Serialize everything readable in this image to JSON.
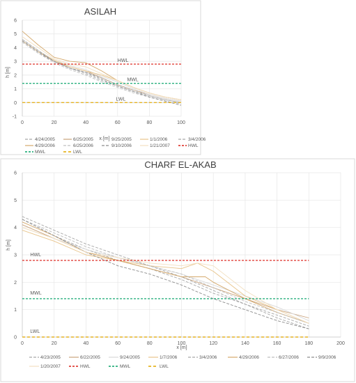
{
  "chart_data": [
    {
      "type": "line",
      "title": "ASILAH",
      "xlabel": "x [m]",
      "ylabel": "h [m]",
      "xlim": [
        0,
        100
      ],
      "ylim": [
        -1,
        6
      ],
      "xticks": [
        "0",
        "20",
        "40",
        "60",
        "80",
        "100"
      ],
      "yticks": [
        "-1",
        "0",
        "1",
        "2",
        "3",
        "4",
        "5",
        "6"
      ],
      "legend_position": "bottom",
      "annotations": [
        {
          "text": "HWL",
          "x": 60,
          "y": 2.95
        },
        {
          "text": "MWL",
          "x": 66,
          "y": 1.55
        },
        {
          "text": "LWL",
          "x": 59,
          "y": 0.15
        }
      ],
      "series": [
        {
          "name": "4/24/2005",
          "color": "#a6a6a6",
          "dash": "dash",
          "x": [
            0,
            10,
            20,
            30,
            40,
            50,
            60,
            70,
            80,
            90,
            100
          ],
          "y": [
            4.4,
            3.6,
            3.0,
            2.5,
            2.1,
            1.6,
            1.2,
            0.8,
            0.5,
            0.2,
            0.0
          ]
        },
        {
          "name": "6/25/2005",
          "color": "#c9a27a",
          "dash": "solid",
          "x": [
            0,
            10,
            20,
            30,
            40,
            50,
            60,
            70,
            80,
            90,
            100
          ],
          "y": [
            4.5,
            3.7,
            3.0,
            2.6,
            2.3,
            1.8,
            1.3,
            0.9,
            0.6,
            0.3,
            0.1
          ]
        },
        {
          "name": "9/25/2005",
          "color": "#d9d9d9",
          "dash": "solid",
          "x": [
            0,
            10,
            20,
            30,
            40,
            50,
            60,
            70,
            80,
            90,
            100
          ],
          "y": [
            4.6,
            3.8,
            3.1,
            2.7,
            2.4,
            1.9,
            1.5,
            1.0,
            0.6,
            0.3,
            0.1
          ]
        },
        {
          "name": "1/1/2006",
          "color": "#e8c48a",
          "dash": "solid",
          "x": [
            0,
            10,
            20,
            30,
            40,
            50,
            60,
            70,
            80,
            90,
            100
          ],
          "y": [
            4.5,
            3.7,
            3.1,
            2.6,
            2.3,
            2.0,
            1.6,
            1.1,
            0.7,
            0.4,
            0.2
          ]
        },
        {
          "name": "3/4/2006",
          "color": "#a6a6a6",
          "dash": "dash",
          "x": [
            0,
            10,
            20,
            30,
            40,
            50,
            60,
            70,
            80,
            90,
            100
          ],
          "y": [
            4.6,
            3.8,
            3.0,
            2.5,
            2.2,
            1.8,
            1.3,
            0.9,
            0.5,
            0.2,
            0.0
          ]
        },
        {
          "name": "4/29/2006",
          "color": "#d4a86a",
          "dash": "solid",
          "x": [
            0,
            10,
            20,
            30,
            40,
            50,
            60,
            70,
            80,
            90,
            100
          ],
          "y": [
            5.2,
            4.2,
            3.3,
            3.0,
            2.9,
            2.3,
            1.6,
            1.1,
            0.7,
            0.4,
            0.2
          ]
        },
        {
          "name": "6/25/2006",
          "color": "#bfbfbf",
          "dash": "dash",
          "x": [
            0,
            10,
            20,
            30,
            40,
            50,
            60,
            70,
            80,
            90,
            100
          ],
          "y": [
            4.4,
            3.6,
            2.9,
            2.4,
            2.0,
            1.5,
            1.1,
            0.7,
            0.4,
            0.1,
            -0.1
          ]
        },
        {
          "name": "9/10/2006",
          "color": "#8c8c8c",
          "dash": "dash",
          "x": [
            0,
            10,
            20,
            30,
            40,
            50,
            60,
            70,
            80,
            90,
            100
          ],
          "y": [
            4.5,
            3.7,
            3.0,
            2.5,
            2.2,
            1.7,
            1.2,
            0.8,
            0.4,
            0.1,
            -0.2
          ]
        },
        {
          "name": "1/21/2007",
          "color": "#f2dfc0",
          "dash": "solid",
          "x": [
            0,
            10,
            20,
            30,
            40,
            50,
            60,
            70,
            80,
            90,
            100
          ],
          "y": [
            4.8,
            4.0,
            3.2,
            2.8,
            2.6,
            2.1,
            1.6,
            1.1,
            0.7,
            0.4,
            0.2
          ]
        },
        {
          "name": "HWL",
          "color": "#e0423a",
          "dash": "hwl",
          "x": [
            0,
            100
          ],
          "y": [
            2.8,
            2.8
          ]
        },
        {
          "name": "MWL",
          "color": "#2bb07f",
          "dash": "hwl",
          "x": [
            0,
            100
          ],
          "y": [
            1.4,
            1.4
          ]
        },
        {
          "name": "LWL",
          "color": "#e6b422",
          "dash": "lwl",
          "x": [
            0,
            100
          ],
          "y": [
            0.0,
            0.0
          ]
        }
      ]
    },
    {
      "type": "line",
      "title": "CHARF EL-AKAB",
      "xlabel": "x [m]",
      "ylabel": "h [m]",
      "xlim": [
        0,
        200
      ],
      "ylim": [
        0,
        6
      ],
      "xticks": [
        "0",
        "20",
        "40",
        "60",
        "80",
        "100",
        "120",
        "140",
        "160",
        "180",
        "200"
      ],
      "yticks": [
        "0",
        "1",
        "2",
        "3",
        "4",
        "5",
        "6"
      ],
      "legend_position": "bottom",
      "annotations": [
        {
          "text": "HWL",
          "x": 5,
          "y": 2.95
        },
        {
          "text": "MWL",
          "x": 5,
          "y": 1.55
        },
        {
          "text": "LWL",
          "x": 5,
          "y": 0.15
        }
      ],
      "series": [
        {
          "name": "4/23/2005",
          "color": "#a6a6a6",
          "dash": "dash",
          "x": [
            0,
            20,
            40,
            60,
            80,
            100,
            120,
            140,
            160,
            180
          ],
          "y": [
            4.3,
            3.7,
            3.2,
            2.8,
            2.5,
            2.1,
            1.6,
            1.2,
            0.7,
            0.3
          ]
        },
        {
          "name": "6/22/2005",
          "color": "#c9a27a",
          "dash": "solid",
          "x": [
            0,
            20,
            40,
            60,
            80,
            100,
            120,
            140,
            160,
            180
          ],
          "y": [
            4.1,
            3.6,
            3.1,
            2.8,
            2.5,
            2.2,
            1.8,
            1.4,
            1.0,
            0.7
          ]
        },
        {
          "name": "9/24/2005",
          "color": "#d9d9d9",
          "dash": "solid",
          "x": [
            0,
            20,
            40,
            60,
            80,
            100,
            120,
            140,
            160,
            180
          ],
          "y": [
            4.0,
            3.6,
            3.2,
            2.9,
            2.6,
            2.3,
            1.9,
            1.5,
            1.1,
            0.6
          ]
        },
        {
          "name": "1/7/2006",
          "color": "#e8c48a",
          "dash": "solid",
          "x": [
            0,
            20,
            40,
            60,
            80,
            100,
            110,
            120,
            140,
            160,
            180
          ],
          "y": [
            3.9,
            3.5,
            3.0,
            2.8,
            2.6,
            2.5,
            2.7,
            2.4,
            1.5,
            1.0,
            0.5
          ]
        },
        {
          "name": "3/4/2006",
          "color": "#a6a6a6",
          "dash": "dash",
          "x": [
            0,
            20,
            40,
            60,
            80,
            100,
            120,
            140,
            160,
            180
          ],
          "y": [
            4.4,
            3.9,
            3.4,
            3.0,
            2.6,
            2.2,
            1.7,
            1.2,
            0.8,
            0.4
          ]
        },
        {
          "name": "4/29/2006",
          "color": "#d4a86a",
          "dash": "solid",
          "x": [
            0,
            20,
            40,
            60,
            80,
            100,
            115,
            120,
            140,
            160,
            180
          ],
          "y": [
            4.2,
            3.7,
            3.1,
            2.8,
            2.5,
            2.2,
            2.2,
            2.0,
            1.4,
            0.9,
            0.5
          ]
        },
        {
          "name": "6/27/2006",
          "color": "#bfbfbf",
          "dash": "dash",
          "x": [
            0,
            20,
            40,
            60,
            80,
            100,
            120,
            140,
            160,
            180
          ],
          "y": [
            4.3,
            3.8,
            3.3,
            2.9,
            2.6,
            2.3,
            1.8,
            1.3,
            0.9,
            0.5
          ]
        },
        {
          "name": "9/9/2006",
          "color": "#8c8c8c",
          "dash": "dash",
          "x": [
            0,
            20,
            40,
            60,
            80,
            100,
            120,
            140,
            160,
            180
          ],
          "y": [
            4.3,
            3.7,
            3.1,
            2.6,
            2.3,
            1.9,
            1.4,
            1.0,
            0.6,
            0.3
          ]
        },
        {
          "name": "1/20/2007",
          "color": "#f2dfc0",
          "dash": "solid",
          "x": [
            0,
            20,
            40,
            60,
            80,
            100,
            110,
            120,
            140,
            160,
            180
          ],
          "y": [
            4.0,
            3.6,
            3.1,
            2.9,
            2.7,
            2.6,
            2.7,
            2.6,
            1.7,
            1.0,
            0.5
          ]
        },
        {
          "name": "HWL",
          "color": "#e0423a",
          "dash": "hwl",
          "x": [
            0,
            180
          ],
          "y": [
            2.8,
            2.8
          ]
        },
        {
          "name": "MWL",
          "color": "#2bb07f",
          "dash": "hwl",
          "x": [
            0,
            180
          ],
          "y": [
            1.4,
            1.4
          ]
        },
        {
          "name": "LWL",
          "color": "#e6b422",
          "dash": "lwl",
          "x": [
            0,
            180
          ],
          "y": [
            0.0,
            0.0
          ]
        }
      ]
    }
  ]
}
